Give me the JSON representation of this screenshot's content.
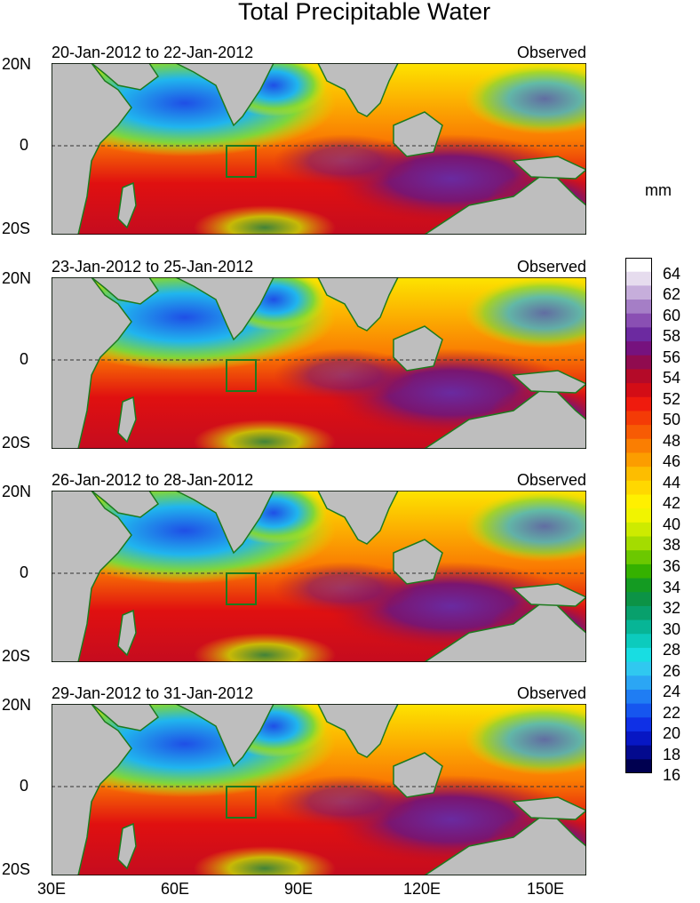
{
  "title": "Total Precipitable Water",
  "unit_label": "mm",
  "map_type": "filled contour map of total precipitable water over the Indian Ocean and Maritime Continent",
  "panels": [
    {
      "date_range": "20-Jan-2012 to 22-Jan-2012",
      "tag": "Observed"
    },
    {
      "date_range": "23-Jan-2012 to 25-Jan-2012",
      "tag": "Observed"
    },
    {
      "date_range": "26-Jan-2012 to 28-Jan-2012",
      "tag": "Observed"
    },
    {
      "date_range": "29-Jan-2012 to 31-Jan-2012",
      "tag": "Observed"
    }
  ],
  "y_axis": {
    "top": "20N",
    "middle": "0",
    "bottom": "20S"
  },
  "x_axis": {
    "labels": [
      "30E",
      "60E",
      "90E",
      "120E",
      "150E"
    ],
    "lon_values": [
      30,
      60,
      90,
      120,
      150
    ],
    "lon_range": [
      30,
      160
    ],
    "lat_range": [
      -20,
      20
    ]
  },
  "colorbar": {
    "labels": [
      "64",
      "62",
      "60",
      "58",
      "56",
      "54",
      "52",
      "50",
      "48",
      "46",
      "44",
      "42",
      "40",
      "38",
      "36",
      "34",
      "32",
      "30",
      "28",
      "26",
      "24",
      "22",
      "20",
      "18",
      "16"
    ],
    "colors": [
      "#ffffff",
      "#e6dcee",
      "#c6aedb",
      "#a57ec6",
      "#8a4fb3",
      "#6c2aa0",
      "#76127e",
      "#900b4f",
      "#b40a28",
      "#d30d16",
      "#ef1b0d",
      "#f43b06",
      "#f75b04",
      "#fa7e02",
      "#fc9d00",
      "#fdbd00",
      "#ffd800",
      "#fff000",
      "#f1f400",
      "#cdeb00",
      "#a4dc00",
      "#6cc800",
      "#35b100",
      "#149b22",
      "#0c9346",
      "#08a06c",
      "#07b596",
      "#0ccbbd",
      "#18dde2",
      "#30c8f0",
      "#2ba6f4",
      "#1f7df3",
      "#1656ef",
      "#0f30e6",
      "#0717c4",
      "#030a8e",
      "#000050"
    ]
  },
  "legend_colors": {
    "land": "#bebebe",
    "coast": "#1d7a1d",
    "background": "#ffffff"
  }
}
